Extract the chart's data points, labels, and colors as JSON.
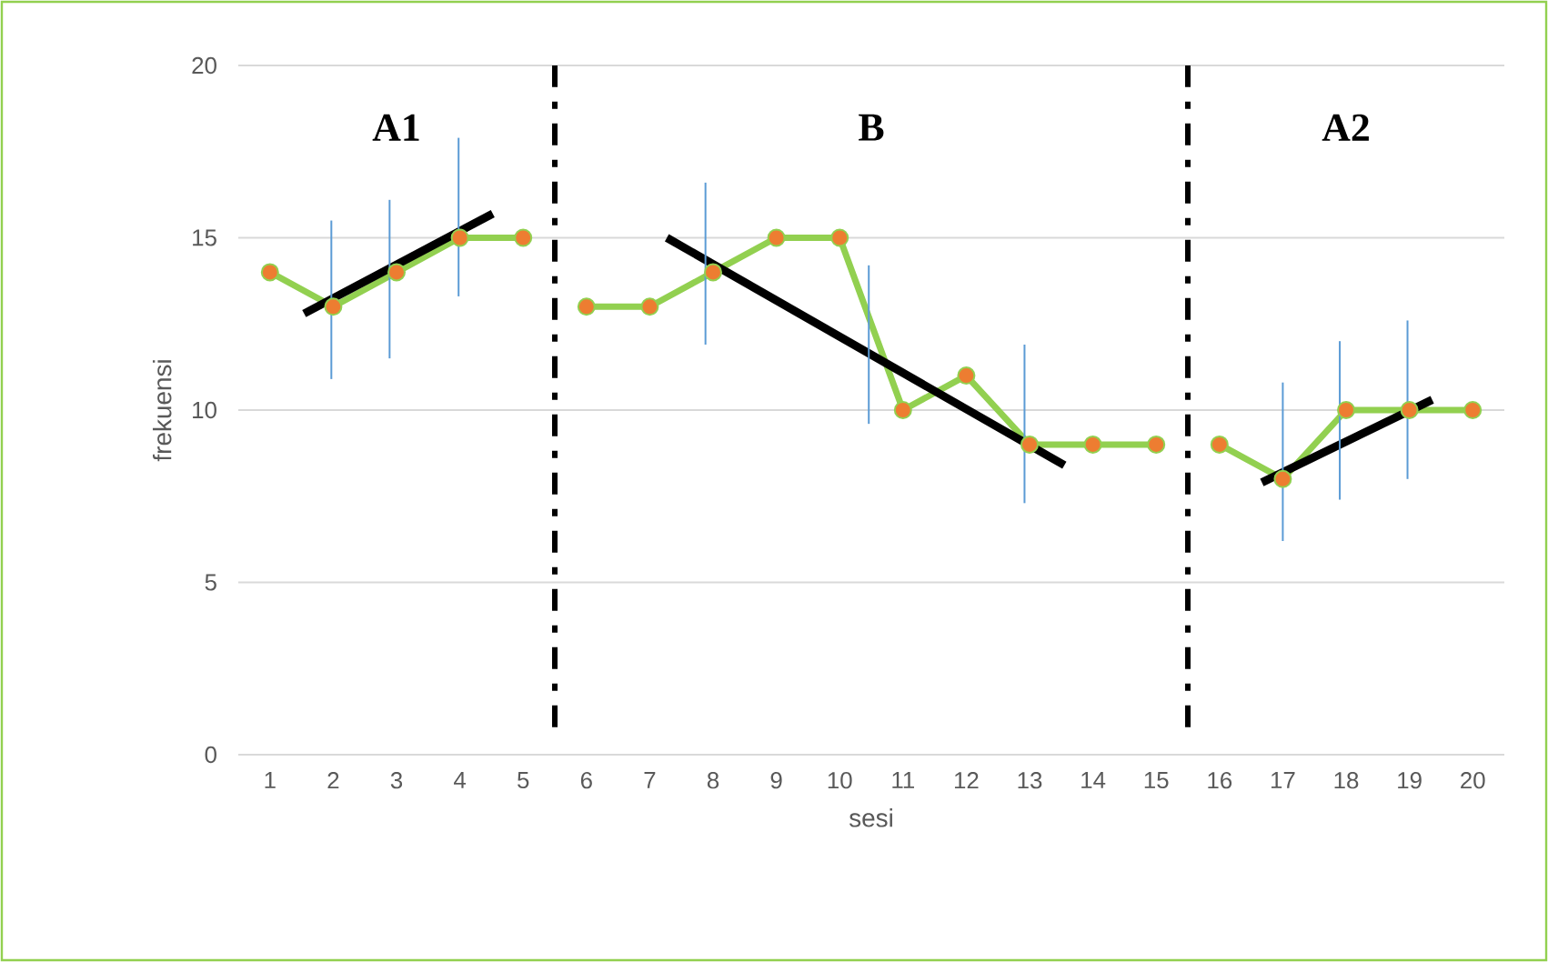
{
  "chart_data": {
    "type": "line",
    "xlabel": "sesi",
    "ylabel": "frekuensi",
    "xlim": [
      0.5,
      20.5
    ],
    "xticks": [
      1,
      2,
      3,
      4,
      5,
      6,
      7,
      8,
      9,
      10,
      11,
      12,
      13,
      14,
      15,
      16,
      17,
      18,
      19,
      20
    ],
    "ylim": [
      0,
      20
    ],
    "yticks": [
      0,
      5,
      10,
      15,
      20
    ],
    "grid": "y",
    "marker": "circle",
    "line_style": "solid",
    "series": [
      {
        "color": "#92d050",
        "x": [
          1,
          2,
          3,
          4,
          5
        ],
        "values": [
          14,
          13,
          14,
          15,
          15
        ]
      },
      {
        "color": "#92d050",
        "x": [
          6,
          7,
          8,
          9,
          10,
          11,
          12,
          13,
          14,
          15
        ],
        "values": [
          13,
          13,
          14,
          15,
          15,
          10,
          11,
          9,
          9,
          9
        ]
      },
      {
        "color": "#92d050",
        "x": [
          16,
          17,
          18,
          19,
          20
        ],
        "values": [
          9,
          8,
          10,
          10,
          10
        ]
      },
      {
        "color": "#000000",
        "marker": "none",
        "x": [
          1.54,
          4.52
        ],
        "values": [
          12.8,
          15.7
        ]
      },
      {
        "color": "#000000",
        "marker": "none",
        "x": [
          7.27,
          13.55
        ],
        "values": [
          15.0,
          8.4
        ]
      },
      {
        "color": "#000000",
        "marker": "none",
        "x": [
          16.67,
          19.36
        ],
        "values": [
          7.9,
          10.3
        ]
      },
      {
        "color": "#5b9bd5",
        "marker": "none",
        "x": [
          1.97,
          1.97
        ],
        "values": [
          10.9,
          15.5
        ]
      },
      {
        "color": "#5b9bd5",
        "marker": "none",
        "x": [
          2.89,
          2.89
        ],
        "values": [
          11.5,
          16.1
        ]
      },
      {
        "color": "#5b9bd5",
        "marker": "none",
        "x": [
          3.98,
          3.98
        ],
        "values": [
          13.3,
          17.9
        ]
      },
      {
        "color": "#5b9bd5",
        "marker": "none",
        "x": [
          7.88,
          7.88
        ],
        "values": [
          11.9,
          16.6
        ]
      },
      {
        "color": "#5b9bd5",
        "marker": "none",
        "x": [
          10.46,
          10.46
        ],
        "values": [
          9.6,
          14.2
        ]
      },
      {
        "color": "#5b9bd5",
        "marker": "none",
        "x": [
          12.92,
          12.92
        ],
        "values": [
          7.3,
          11.9
        ]
      },
      {
        "color": "#5b9bd5",
        "marker": "none",
        "x": [
          17.0,
          17.0
        ],
        "values": [
          6.2,
          10.8
        ]
      },
      {
        "color": "#5b9bd5",
        "marker": "none",
        "x": [
          17.9,
          17.9
        ],
        "values": [
          7.4,
          12.0
        ]
      },
      {
        "color": "#5b9bd5",
        "marker": "none",
        "x": [
          18.97,
          18.97
        ],
        "values": [
          8.0,
          12.6
        ]
      }
    ],
    "ref_lines": [
      {
        "axis": "x",
        "value": 5.5,
        "color": "#000000",
        "line_style": "dashdot"
      },
      {
        "axis": "x",
        "value": 15.5,
        "color": "#000000",
        "line_style": "dashdot"
      }
    ],
    "annotations": [
      "A1",
      "B",
      "A2"
    ]
  }
}
